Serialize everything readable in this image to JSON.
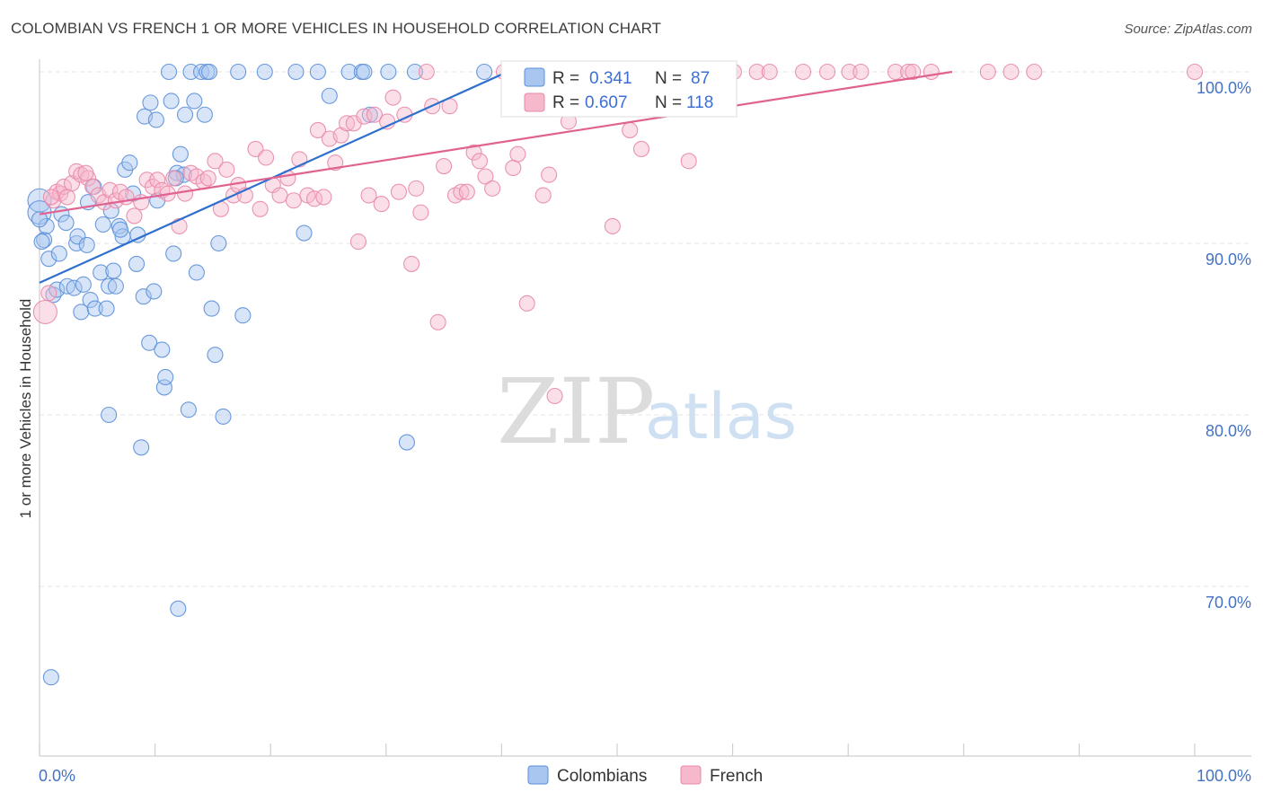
{
  "title": "COLOMBIAN VS FRENCH 1 OR MORE VEHICLES IN HOUSEHOLD CORRELATION CHART",
  "source": "Source: ZipAtlas.com",
  "watermark": {
    "zip": "ZIP",
    "atlas": "atlas"
  },
  "chart_data": {
    "type": "scatter",
    "title": "COLOMBIAN VS FRENCH 1 OR MORE VEHICLES IN HOUSEHOLD CORRELATION CHART",
    "ylabel": "1 or more Vehicles in Household",
    "xlabel": "",
    "xlim": [
      0,
      100
    ],
    "ylim": [
      61,
      101.5
    ],
    "x_tick_labels": [
      "0.0%",
      "100.0%"
    ],
    "y_ticks": [
      {
        "value": 70,
        "label": "70.0%"
      },
      {
        "value": 80,
        "label": "80.0%"
      },
      {
        "value": 90,
        "label": "90.0%"
      },
      {
        "value": 100,
        "label": "100.0%"
      }
    ],
    "grid": true,
    "legend_position": "top-center",
    "legend": [
      {
        "name": "Colombians",
        "r_label": "R =",
        "r": "0.341",
        "n_label": "N =",
        "n": "87",
        "color": "#a9c6f0",
        "line": "#2f6fce"
      },
      {
        "name": "French",
        "r_label": "R =",
        "r": "0.607",
        "n_label": "N =",
        "n": "118",
        "color": "#f6b9cc",
        "line": "#e06290"
      }
    ],
    "series": [
      {
        "name": "Colombians",
        "color": "#a9c6f0",
        "stroke": "#5b8fd8",
        "trend": {
          "x0": 0,
          "y0": 87.7,
          "x1": 40.5,
          "y1": 100
        },
        "points": [
          [
            0.0,
            92.5
          ],
          [
            0.0,
            91.8
          ],
          [
            0.4,
            90.2
          ],
          [
            0.6,
            91.0
          ],
          [
            0.8,
            89.1
          ],
          [
            1.2,
            87.0
          ],
          [
            1.5,
            87.3
          ],
          [
            1.7,
            89.4
          ],
          [
            1.9,
            91.7
          ],
          [
            2.3,
            91.2
          ],
          [
            2.4,
            87.5
          ],
          [
            3.0,
            87.4
          ],
          [
            3.2,
            90.0
          ],
          [
            3.3,
            90.4
          ],
          [
            3.6,
            86.0
          ],
          [
            3.8,
            87.6
          ],
          [
            4.1,
            89.9
          ],
          [
            4.2,
            92.4
          ],
          [
            4.4,
            86.7
          ],
          [
            4.7,
            93.3
          ],
          [
            4.8,
            86.2
          ],
          [
            5.3,
            88.3
          ],
          [
            5.5,
            91.1
          ],
          [
            5.8,
            86.2
          ],
          [
            6.0,
            87.5
          ],
          [
            6.2,
            91.9
          ],
          [
            6.4,
            88.4
          ],
          [
            6.6,
            87.5
          ],
          [
            6.9,
            91.0
          ],
          [
            7.2,
            90.4
          ],
          [
            7.4,
            94.3
          ],
          [
            7.8,
            94.7
          ],
          [
            8.1,
            92.9
          ],
          [
            8.4,
            88.8
          ],
          [
            8.5,
            90.5
          ],
          [
            8.8,
            78.1
          ],
          [
            9.0,
            86.9
          ],
          [
            9.1,
            97.4
          ],
          [
            9.5,
            84.2
          ],
          [
            9.6,
            98.2
          ],
          [
            9.9,
            87.2
          ],
          [
            10.1,
            97.2
          ],
          [
            10.2,
            92.5
          ],
          [
            10.6,
            83.8
          ],
          [
            10.8,
            81.6
          ],
          [
            10.9,
            82.2
          ],
          [
            11.2,
            100.0
          ],
          [
            11.4,
            98.3
          ],
          [
            11.6,
            89.4
          ],
          [
            11.9,
            94.1
          ],
          [
            12.0,
            68.7
          ],
          [
            12.2,
            95.2
          ],
          [
            12.5,
            94.0
          ],
          [
            12.6,
            97.5
          ],
          [
            12.9,
            80.3
          ],
          [
            13.1,
            100.0
          ],
          [
            13.4,
            98.3
          ],
          [
            13.6,
            88.3
          ],
          [
            14.0,
            100.0
          ],
          [
            14.3,
            97.5
          ],
          [
            14.5,
            100.0
          ],
          [
            14.7,
            100.0
          ],
          [
            14.9,
            86.2
          ],
          [
            15.2,
            83.5
          ],
          [
            15.5,
            90.0
          ],
          [
            15.9,
            79.9
          ],
          [
            17.2,
            100.0
          ],
          [
            17.6,
            85.8
          ],
          [
            19.5,
            100.0
          ],
          [
            22.2,
            100.0
          ],
          [
            22.9,
            90.6
          ],
          [
            24.1,
            100.0
          ],
          [
            25.1,
            98.6
          ],
          [
            26.8,
            100.0
          ],
          [
            27.9,
            100.0
          ],
          [
            28.1,
            100.0
          ],
          [
            28.6,
            97.5
          ],
          [
            30.2,
            100.0
          ],
          [
            31.8,
            78.4
          ],
          [
            32.5,
            100.0
          ],
          [
            38.5,
            100.0
          ],
          [
            0.0,
            91.4
          ],
          [
            0.2,
            90.1
          ],
          [
            1.0,
            64.7
          ],
          [
            6.0,
            80.0
          ],
          [
            7.0,
            90.8
          ],
          [
            11.8,
            93.8
          ]
        ]
      },
      {
        "name": "French",
        "color": "#f6b9cc",
        "stroke": "#e888a8",
        "trend": {
          "x0": 0,
          "y0": 91.7,
          "x1": 79,
          "y1": 100
        },
        "points": [
          [
            0.5,
            86.0
          ],
          [
            0.8,
            87.1
          ],
          [
            1.2,
            92.5
          ],
          [
            1.5,
            93.0
          ],
          [
            1.8,
            92.9
          ],
          [
            2.1,
            93.3
          ],
          [
            2.4,
            92.7
          ],
          [
            2.8,
            93.5
          ],
          [
            3.2,
            94.2
          ],
          [
            3.6,
            94.0
          ],
          [
            4.2,
            93.8
          ],
          [
            4.6,
            93.3
          ],
          [
            5.1,
            92.8
          ],
          [
            5.6,
            92.4
          ],
          [
            6.1,
            93.1
          ],
          [
            6.6,
            92.5
          ],
          [
            7.0,
            93.0
          ],
          [
            7.5,
            92.7
          ],
          [
            8.2,
            91.6
          ],
          [
            8.8,
            92.4
          ],
          [
            9.3,
            93.7
          ],
          [
            9.8,
            93.3
          ],
          [
            10.2,
            93.7
          ],
          [
            10.6,
            93.1
          ],
          [
            11.1,
            92.9
          ],
          [
            11.6,
            93.8
          ],
          [
            12.1,
            91.0
          ],
          [
            12.6,
            92.9
          ],
          [
            13.1,
            94.1
          ],
          [
            13.6,
            93.9
          ],
          [
            14.2,
            93.6
          ],
          [
            14.6,
            93.8
          ],
          [
            15.2,
            94.8
          ],
          [
            15.7,
            92.0
          ],
          [
            16.2,
            94.3
          ],
          [
            16.8,
            92.8
          ],
          [
            17.2,
            93.4
          ],
          [
            17.8,
            92.8
          ],
          [
            18.7,
            95.5
          ],
          [
            19.1,
            92.0
          ],
          [
            19.6,
            95.0
          ],
          [
            20.2,
            93.4
          ],
          [
            20.8,
            92.8
          ],
          [
            21.5,
            93.8
          ],
          [
            22.0,
            92.5
          ],
          [
            22.5,
            94.9
          ],
          [
            23.2,
            92.8
          ],
          [
            23.8,
            92.6
          ],
          [
            24.1,
            96.6
          ],
          [
            24.6,
            92.7
          ],
          [
            25.1,
            96.1
          ],
          [
            25.6,
            94.7
          ],
          [
            26.1,
            96.3
          ],
          [
            26.6,
            97.0
          ],
          [
            27.2,
            97.0
          ],
          [
            27.6,
            90.1
          ],
          [
            28.1,
            97.4
          ],
          [
            28.5,
            92.8
          ],
          [
            29.0,
            97.5
          ],
          [
            29.6,
            92.3
          ],
          [
            30.1,
            97.1
          ],
          [
            30.6,
            98.5
          ],
          [
            31.1,
            93.0
          ],
          [
            31.6,
            97.5
          ],
          [
            32.2,
            88.8
          ],
          [
            32.6,
            93.2
          ],
          [
            33.0,
            91.8
          ],
          [
            33.5,
            100.0
          ],
          [
            34.0,
            98.0
          ],
          [
            34.5,
            85.4
          ],
          [
            35.0,
            94.5
          ],
          [
            35.5,
            98.0
          ],
          [
            36.0,
            92.8
          ],
          [
            36.5,
            93.0
          ],
          [
            37.0,
            93.0
          ],
          [
            37.6,
            95.3
          ],
          [
            38.1,
            94.8
          ],
          [
            38.6,
            93.9
          ],
          [
            39.2,
            93.2
          ],
          [
            40.2,
            100.0
          ],
          [
            41.0,
            94.4
          ],
          [
            41.4,
            95.2
          ],
          [
            42.2,
            86.5
          ],
          [
            42.8,
            100.0
          ],
          [
            43.6,
            92.8
          ],
          [
            44.1,
            94.0
          ],
          [
            44.6,
            81.1
          ],
          [
            45.2,
            100.0
          ],
          [
            45.8,
            97.1
          ],
          [
            46.6,
            100.0
          ],
          [
            47.6,
            98.2
          ],
          [
            49.0,
            100.0
          ],
          [
            49.6,
            91.0
          ],
          [
            50.6,
            100.0
          ],
          [
            51.1,
            96.6
          ],
          [
            52.1,
            95.5
          ],
          [
            53.1,
            100.0
          ],
          [
            54.2,
            100.0
          ],
          [
            55.1,
            100.0
          ],
          [
            56.2,
            94.8
          ],
          [
            58.1,
            100.0
          ],
          [
            60.1,
            100.0
          ],
          [
            62.1,
            100.0
          ],
          [
            63.2,
            100.0
          ],
          [
            66.1,
            100.0
          ],
          [
            68.2,
            100.0
          ],
          [
            70.1,
            100.0
          ],
          [
            71.1,
            100.0
          ],
          [
            74.1,
            100.0
          ],
          [
            75.2,
            100.0
          ],
          [
            75.6,
            100.0
          ],
          [
            77.2,
            100.0
          ],
          [
            82.1,
            100.0
          ],
          [
            84.1,
            100.0
          ],
          [
            86.1,
            100.0
          ],
          [
            100.0,
            100.0
          ],
          [
            1.0,
            92.7
          ],
          [
            4.0,
            94.1
          ]
        ]
      }
    ]
  }
}
